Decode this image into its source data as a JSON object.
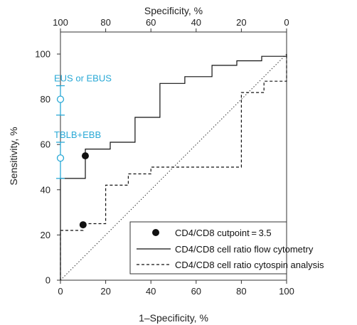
{
  "chart_data": {
    "type": "line",
    "top_axis": {
      "label": "Specificity, %",
      "ticks": [
        "100",
        "80",
        "60",
        "40",
        "20",
        "0"
      ]
    },
    "x_axis": {
      "label": "1–Specificity, %",
      "range": [
        0,
        100
      ],
      "ticks": [
        "0",
        "20",
        "40",
        "60",
        "80",
        "100"
      ]
    },
    "y_axis": {
      "label": "Sensitivity, %",
      "range": [
        0,
        100
      ],
      "ticks": [
        "0",
        "20",
        "40",
        "60",
        "80",
        "100"
      ]
    },
    "annotations": [
      {
        "text": "EUS or EBUS",
        "x": 0,
        "y": 80,
        "low": 73,
        "high": 86,
        "color": "#29a9d6"
      },
      {
        "text": "TBLB+EBB",
        "x": 0,
        "y": 54,
        "low": 45,
        "high": 61,
        "color": "#29a9d6"
      }
    ],
    "cutpoints": [
      {
        "x": 11,
        "y": 55
      },
      {
        "x": 10,
        "y": 24.5
      }
    ],
    "series": [
      {
        "name": "CD4/CD8 cell ratio flow cytometry",
        "style": "solid",
        "points": [
          [
            0,
            0
          ],
          [
            0,
            45
          ],
          [
            11,
            45
          ],
          [
            11,
            58
          ],
          [
            22,
            58
          ],
          [
            22,
            61
          ],
          [
            33,
            61
          ],
          [
            33,
            72
          ],
          [
            44,
            72
          ],
          [
            44,
            87
          ],
          [
            55,
            87
          ],
          [
            55,
            90
          ],
          [
            67,
            90
          ],
          [
            67,
            95
          ],
          [
            78,
            95
          ],
          [
            78,
            97
          ],
          [
            89,
            97
          ],
          [
            89,
            99
          ],
          [
            100,
            99
          ],
          [
            100,
            100
          ]
        ]
      },
      {
        "name": "CD4/CD8 cell ratio cytospin analysis",
        "style": "dashed",
        "points": [
          [
            0,
            0
          ],
          [
            0,
            22
          ],
          [
            10,
            22
          ],
          [
            10,
            25
          ],
          [
            20,
            25
          ],
          [
            20,
            42
          ],
          [
            30,
            42
          ],
          [
            30,
            47
          ],
          [
            40,
            47
          ],
          [
            40,
            50
          ],
          [
            80,
            50
          ],
          [
            80,
            83
          ],
          [
            90,
            83
          ],
          [
            90,
            88
          ],
          [
            100,
            88
          ],
          [
            100,
            100
          ]
        ]
      }
    ],
    "reference_line": {
      "points": [
        [
          0,
          0
        ],
        [
          100,
          100
        ]
      ],
      "style": "dotted"
    },
    "legend": {
      "position": "bottom-right",
      "cutpoint_label": "CD4/CD8 cutpoint = 3.5"
    }
  }
}
